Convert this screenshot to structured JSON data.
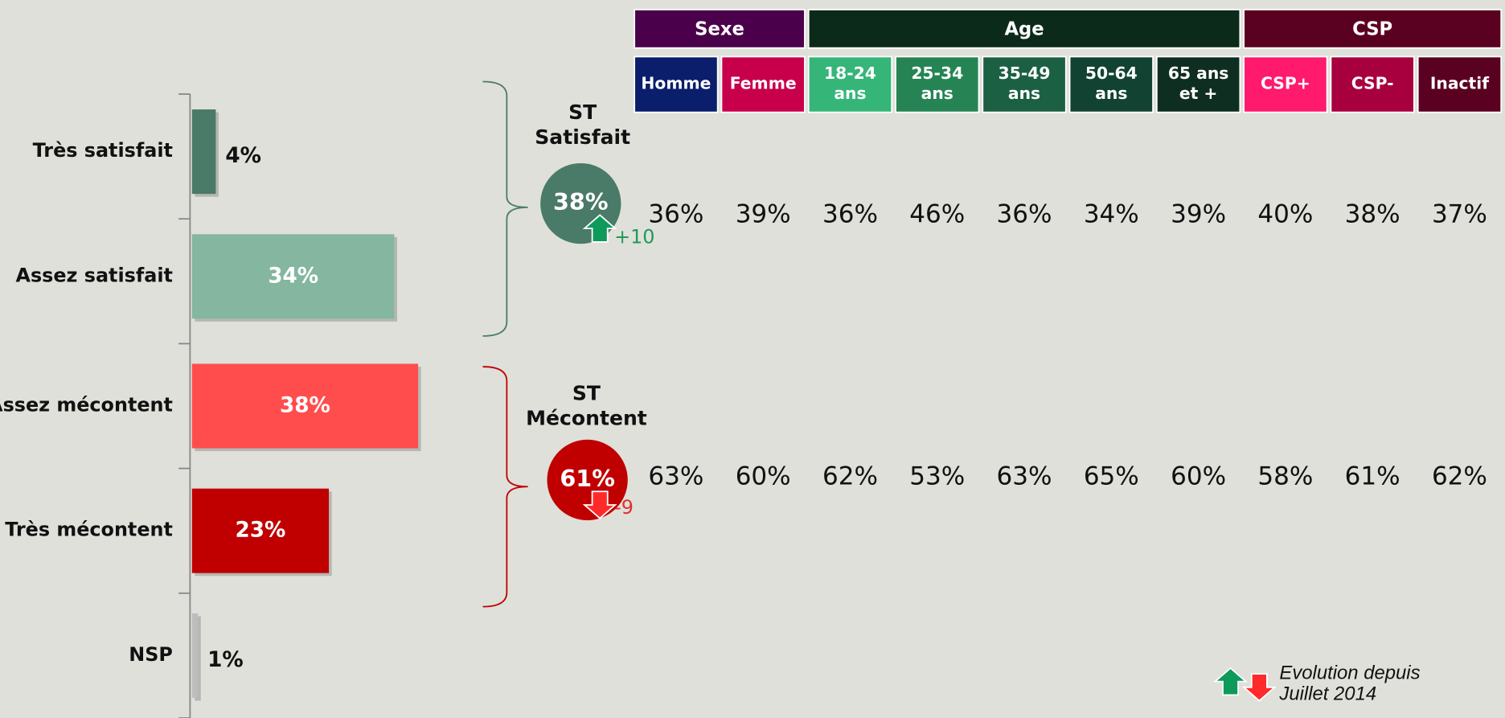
{
  "chart_data": {
    "type": "bar",
    "orientation": "horizontal",
    "categories": [
      "Très satisfait",
      "Assez satisfait",
      "Assez mécontent",
      "Très mécontent",
      "NSP"
    ],
    "values": [
      4,
      34,
      38,
      23,
      1
    ],
    "value_labels": [
      "4%",
      "34%",
      "38%",
      "23%",
      "1%"
    ],
    "colors": [
      "#4a7a68",
      "#84b6a0",
      "#ff4d4d",
      "#c00000",
      "#bdbdbd"
    ],
    "xlim": [
      0,
      100
    ]
  },
  "subtotals": [
    {
      "label": [
        "ST",
        "Satisfait"
      ],
      "value_label": "38%",
      "change_label": "+10",
      "direction": "up",
      "color": "#4a7a68",
      "change_color": "#1f9a5a"
    },
    {
      "label": [
        "ST",
        "Mécontent"
      ],
      "value_label": "61%",
      "change_label": "-9",
      "direction": "down",
      "color": "#c00000",
      "change_color": "#e03030"
    }
  ],
  "breakdown": {
    "groups": [
      {
        "name": "Sexe",
        "color": "#4b004b",
        "columns": [
          {
            "label": [
              "Homme"
            ],
            "color": "#0b1e6b"
          },
          {
            "label": [
              "Femme"
            ],
            "color": "#c8004c"
          }
        ]
      },
      {
        "name": "Age",
        "color": "#0b2a1a",
        "columns": [
          {
            "label": [
              "18-24",
              "ans"
            ],
            "color": "#35b678"
          },
          {
            "label": [
              "25-34",
              "ans"
            ],
            "color": "#268454"
          },
          {
            "label": [
              "35-49",
              "ans"
            ],
            "color": "#1b6042"
          },
          {
            "label": [
              "50-64",
              "ans"
            ],
            "color": "#124232"
          },
          {
            "label": [
              "65 ans",
              "et +"
            ],
            "color": "#0f2e22"
          }
        ]
      },
      {
        "name": "CSP",
        "color": "#5a0020",
        "columns": [
          {
            "label": [
              "CSP+"
            ],
            "color": "#ff1a6e"
          },
          {
            "label": [
              "CSP-"
            ],
            "color": "#a8003e"
          },
          {
            "label": [
              "Inactif"
            ],
            "color": "#5a0020"
          }
        ]
      }
    ],
    "rows": [
      [
        "36%",
        "39%",
        "36%",
        "46%",
        "36%",
        "34%",
        "39%",
        "40%",
        "38%",
        "37%"
      ],
      [
        "63%",
        "60%",
        "62%",
        "53%",
        "63%",
        "65%",
        "60%",
        "58%",
        "61%",
        "62%"
      ]
    ]
  },
  "legend": [
    "Evolution depuis",
    "Juillet 2014"
  ]
}
